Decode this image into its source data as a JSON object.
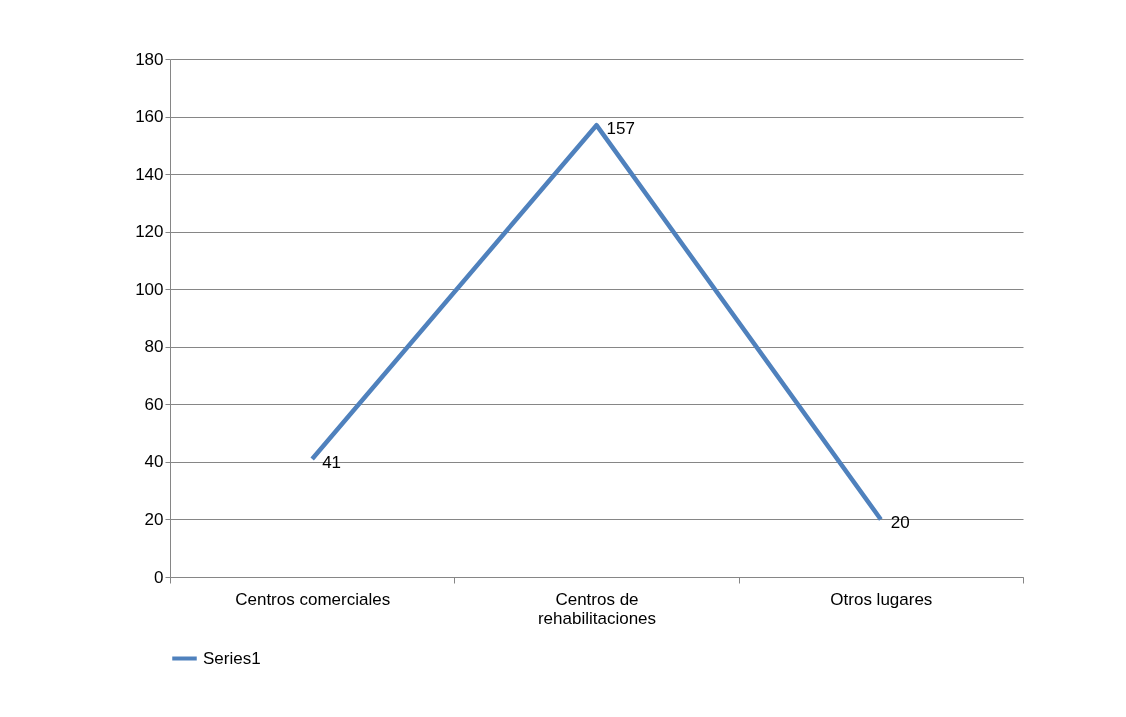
{
  "chart_data": {
    "type": "line",
    "categories": [
      "Centros comerciales",
      "Centros de rehabilitaciones",
      "Otros lugares"
    ],
    "series": [
      {
        "name": "Series1",
        "color": "#4f81bd",
        "values": [
          41,
          157,
          20
        ]
      }
    ],
    "ylim": [
      0,
      180
    ],
    "yticks": [
      0,
      20,
      40,
      60,
      80,
      100,
      120,
      140,
      160,
      180
    ],
    "grid": "y",
    "legend": "bottom",
    "data_labels": true,
    "marker": "none",
    "line_style": "solid"
  }
}
